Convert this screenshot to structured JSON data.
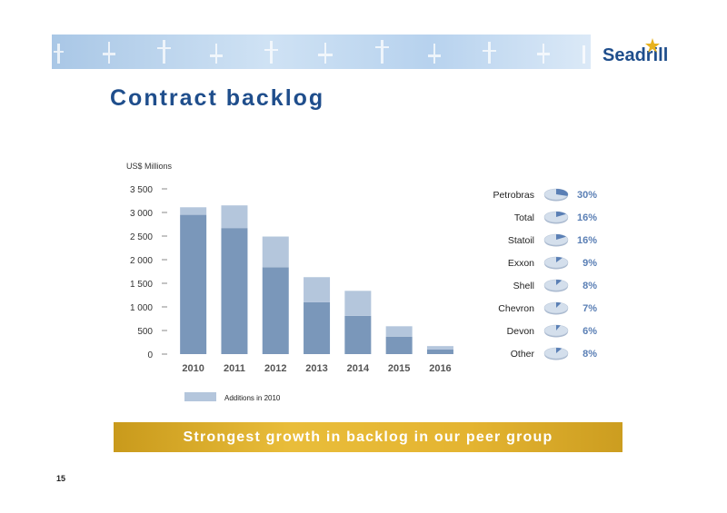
{
  "header": {
    "logo_text": "Seadrill",
    "page_title": "Contract backlog"
  },
  "chart_data": {
    "type": "bar",
    "stacked": true,
    "ylabel": "US$ Millions",
    "ylim": [
      0,
      3500
    ],
    "yticks": [
      0,
      500,
      1000,
      1500,
      2000,
      2500,
      3000,
      3500
    ],
    "ytick_labels": [
      "0",
      "500",
      "1 000",
      "1 500",
      "2 000",
      "2 500",
      "3 000",
      "3 500"
    ],
    "categories": [
      "2010",
      "2011",
      "2012",
      "2013",
      "2014",
      "2015",
      "2016"
    ],
    "series": [
      {
        "values": [
          2950,
          2670,
          1840,
          1100,
          810,
          370,
          100
        ],
        "color": "#7a97ba"
      },
      {
        "name": "Additions in 2010",
        "values": [
          160,
          480,
          650,
          530,
          530,
          220,
          70
        ],
        "color": "#b4c6dc"
      }
    ],
    "legend": {
      "position": "bottom-left",
      "label": "Additions in 2010"
    },
    "grid": false
  },
  "customers": {
    "items": [
      {
        "name": "Petrobras",
        "share": "30%",
        "fraction": 0.3
      },
      {
        "name": "Total",
        "share": "16%",
        "fraction": 0.16
      },
      {
        "name": "Statoil",
        "share": "16%",
        "fraction": 0.16
      },
      {
        "name": "Exxon",
        "share": "9%",
        "fraction": 0.09
      },
      {
        "name": "Shell",
        "share": "8%",
        "fraction": 0.08
      },
      {
        "name": "Chevron",
        "share": "7%",
        "fraction": 0.07
      },
      {
        "name": "Devon",
        "share": "6%",
        "fraction": 0.06
      },
      {
        "name": "Other",
        "share": "8%",
        "fraction": 0.08
      }
    ],
    "share_color": "#5a7fb5",
    "pie_base_color": "#d4dfec",
    "pie_slice_color": "#5a7fb5"
  },
  "footer": {
    "tagline": "Strongest growth in backlog in our peer group",
    "page_number": "15"
  },
  "colors": {
    "title": "#1f4e8c",
    "tagline_bg": "#e0b030"
  }
}
